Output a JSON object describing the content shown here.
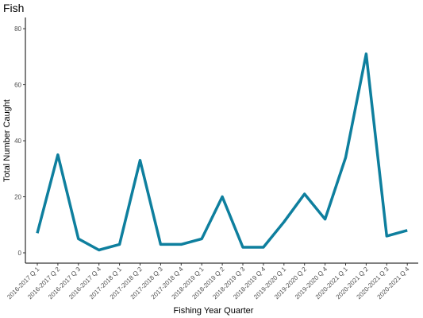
{
  "chart_data": {
    "type": "line",
    "title": "Fish",
    "xlabel": "Fishing Year Quarter",
    "ylabel": "Total Number Caught",
    "ylim": [
      0,
      84
    ],
    "yticks": [
      0,
      20,
      40,
      60,
      80
    ],
    "grid": false,
    "categories": [
      "2016-2017 Q 1",
      "2016-2017 Q 2",
      "2016-2017 Q 3",
      "2016-2017 Q 4",
      "2017-2018 Q 1",
      "2017-2018 Q 2",
      "2017-2018 Q 3",
      "2017-2018 Q 4",
      "2018-2019 Q 1",
      "2018-2019 Q 2",
      "2018-2019 Q 3",
      "2018-2019 Q 4",
      "2019-2020 Q 1",
      "2019-2020 Q 2",
      "2019-2020 Q 4",
      "2020-2021 Q 1",
      "2020-2021 Q 2",
      "2020-2021 Q 3",
      "2020-2021 Q 4"
    ],
    "series": [
      {
        "values": [
          7,
          35,
          5,
          1,
          3,
          33,
          3,
          3,
          5,
          20,
          2,
          2,
          11,
          21,
          12,
          34,
          71,
          6,
          8
        ]
      }
    ],
    "line_color": "#0e7f9e"
  }
}
